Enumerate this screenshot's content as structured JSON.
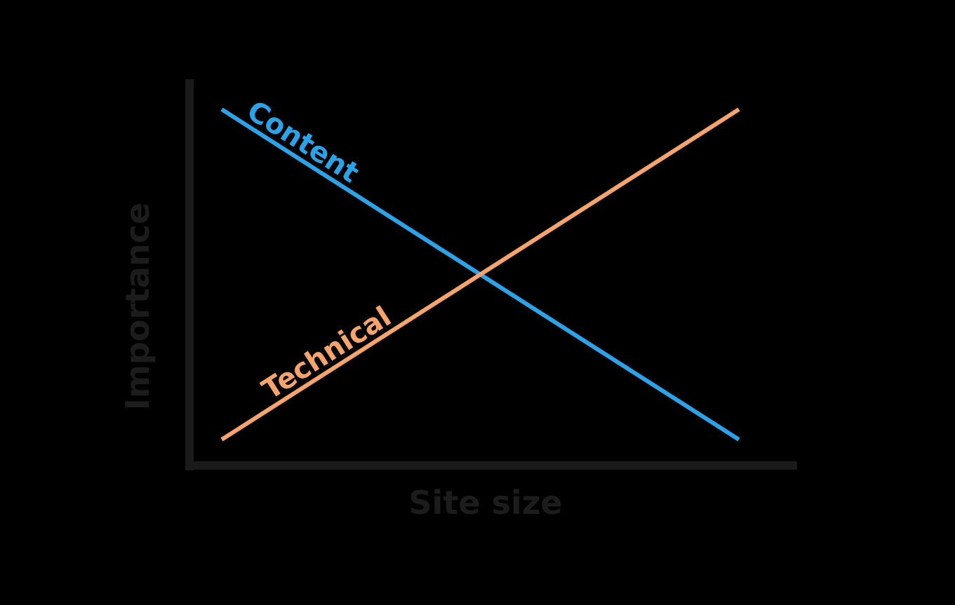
{
  "chart_data": {
    "type": "line",
    "title": "",
    "xlabel": "Site size",
    "ylabel": "Importance",
    "xlim": [
      0,
      1
    ],
    "ylim": [
      0,
      1
    ],
    "grid": false,
    "legend": "inline labels on lines",
    "x": [
      0,
      1
    ],
    "series": [
      {
        "name": "Content",
        "color": "#2ba3e8",
        "values": [
          1,
          0
        ]
      },
      {
        "name": "Technical",
        "color": "#f6a46b",
        "values": [
          0,
          1
        ]
      }
    ]
  }
}
